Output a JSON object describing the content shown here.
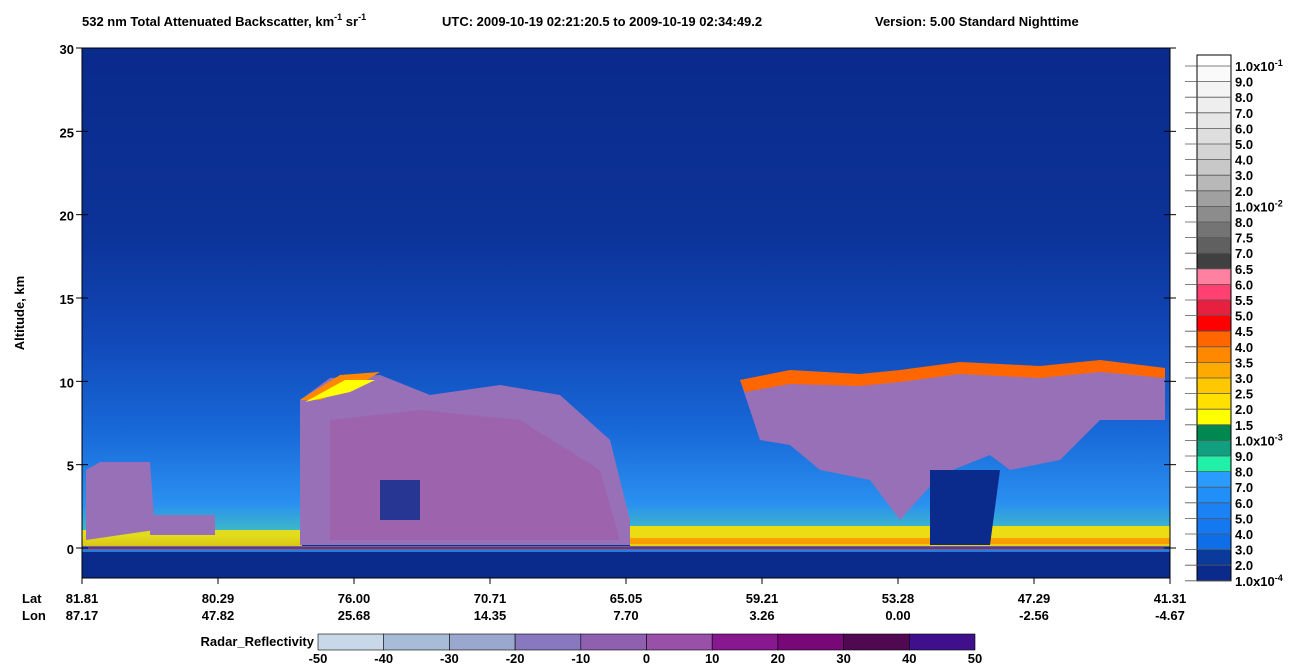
{
  "chart_data": {
    "type": "curtain",
    "title_parts": [
      {
        "text": "532 nm Total Attenuated Backscatter, km"
      },
      {
        "sup": "-1"
      },
      {
        "text": " sr"
      },
      {
        "sup": "-1"
      }
    ],
    "utc": "UTC:  2009-10-19 02:21:20.5  to  2009-10-19 02:34:49.2",
    "version": "Version: 5.00  Standard  Nighttime",
    "y_label": "Altitude, km",
    "ylim": [
      -1.8,
      30
    ],
    "yticks": [
      0,
      5,
      10,
      15,
      20,
      25,
      30
    ],
    "x_row_labels": [
      "Lat",
      "Lon"
    ],
    "lat": [
      "81.81",
      "80.29",
      "76.00",
      "70.71",
      "65.05",
      "59.21",
      "53.28",
      "47.29",
      "41.31"
    ],
    "lon": [
      "87.17",
      "47.82",
      "25.68",
      "14.35",
      "7.70",
      "3.26",
      "0.00",
      "-2.56",
      "-4.67"
    ],
    "backscatter_colorbar": {
      "labels": [
        {
          "text": "1.0x10",
          "sup": "-1"
        },
        "9.0",
        "8.0",
        "7.0",
        "6.0",
        "5.0",
        "4.0",
        "3.0",
        "2.0",
        {
          "text": "1.0x10",
          "sup": "-2"
        },
        "8.0",
        "7.5",
        "7.0",
        "6.5",
        "6.0",
        "5.5",
        "5.0",
        "4.5",
        "4.0",
        "3.5",
        "3.0",
        "2.5",
        "2.0",
        "1.5",
        {
          "text": "1.0x10",
          "sup": "-3"
        },
        "9.0",
        "8.0",
        "7.0",
        "6.0",
        "5.0",
        "4.0",
        "3.0",
        "2.0",
        {
          "text": "1.0x10",
          "sup": "-4"
        }
      ],
      "colors": [
        "#fafafa",
        "#f4f4f4",
        "#eeeeee",
        "#e6e6e6",
        "#dedede",
        "#d4d4d4",
        "#c8c8c8",
        "#b8b8b8",
        "#a0a0a0",
        "#8c8c8c",
        "#747474",
        "#606060",
        "#404040",
        "#ff80a0",
        "#ff4070",
        "#e82040",
        "#ff0000",
        "#ff6600",
        "#ff8800",
        "#ffaa00",
        "#ffc800",
        "#ffe000",
        "#ffff00",
        "#008850",
        "#10a080",
        "#20f0a8",
        "#2a9cff",
        "#2090f8",
        "#1a82f5",
        "#1478f0",
        "#0d6ee8",
        "#0a3a9c",
        "#0a2a8c"
      ]
    },
    "radar_colorbar": {
      "label": "Radar_Reflectivity",
      "lim": [
        -50,
        50
      ],
      "ticks": [
        -50,
        -40,
        -30,
        -20,
        -10,
        0,
        10,
        20,
        30,
        40,
        50
      ],
      "colors": [
        "#c8d8e8",
        "#a8bcd8",
        "#9aa8d0",
        "#8878c0",
        "#9060b0",
        "#9850a8",
        "#881890",
        "#780878",
        "#500850",
        "#40108c"
      ]
    }
  }
}
